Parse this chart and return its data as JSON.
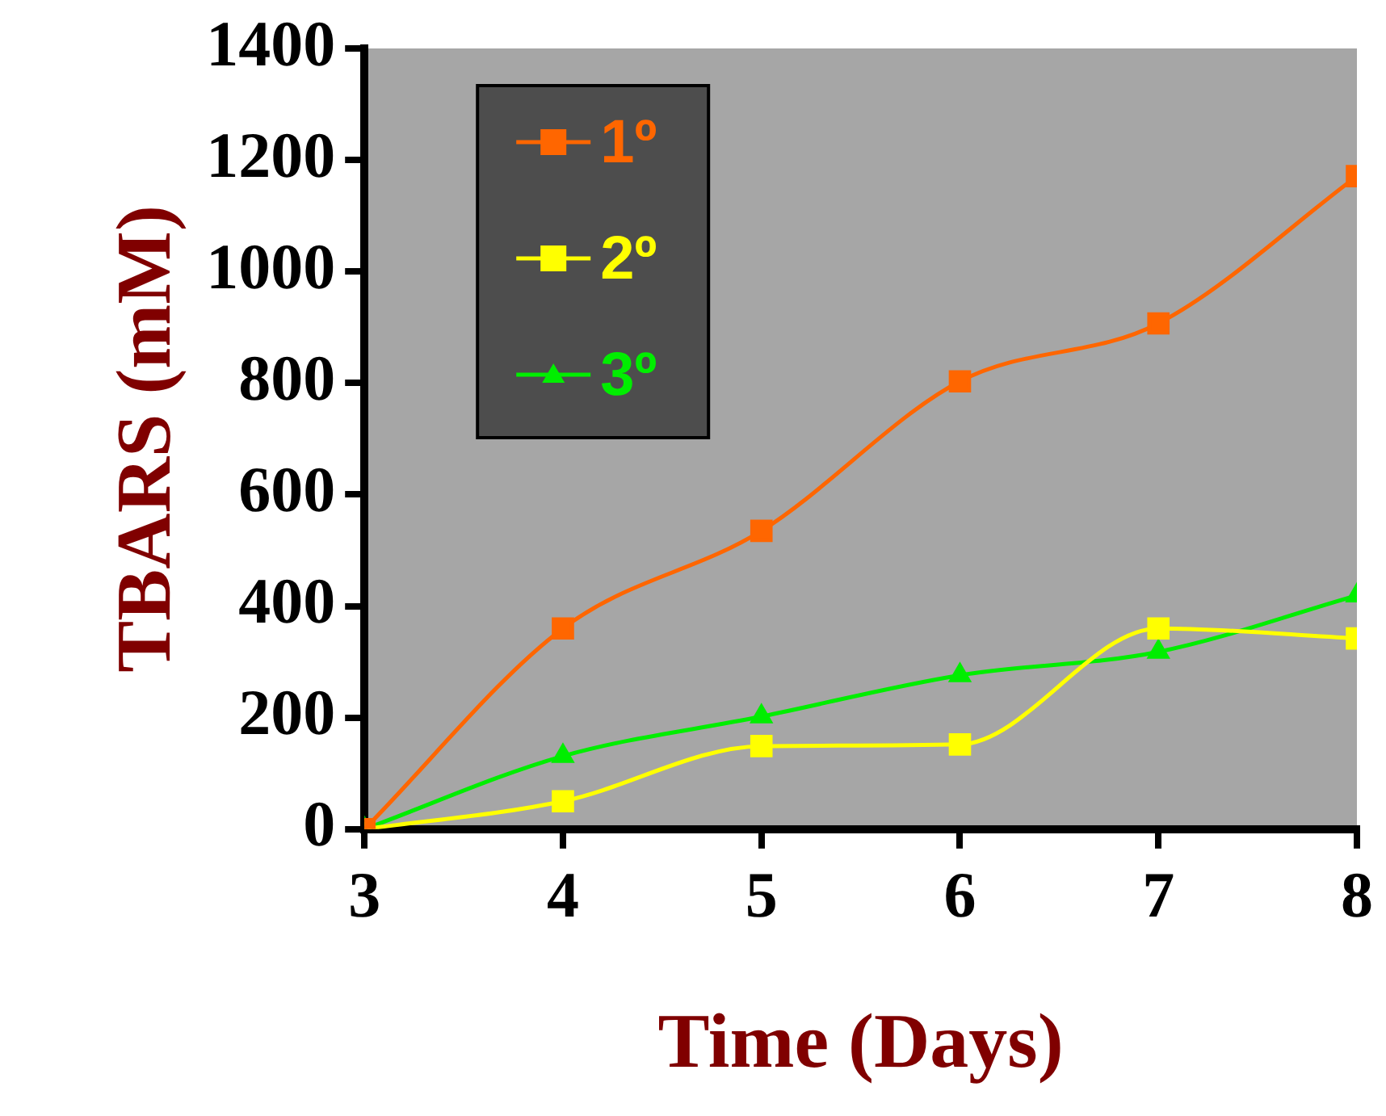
{
  "chart_data": {
    "type": "line",
    "xlabel": "Time (Days)",
    "ylabel": "TBARS (mM)",
    "x": [
      3,
      4,
      5,
      6,
      7,
      8
    ],
    "series": [
      {
        "name": "1º",
        "color": "#ff6600",
        "marker": "square",
        "values": [
          0,
          360,
          535,
          803,
          907,
          1171
        ]
      },
      {
        "name": "2º",
        "color": "#ffff00",
        "marker": "square",
        "values": [
          0,
          50,
          149,
          152,
          360,
          342
        ]
      },
      {
        "name": "3º",
        "color": "#00ee00",
        "marker": "triangle",
        "values": [
          0,
          131,
          202,
          276,
          318,
          419
        ]
      }
    ],
    "xlim": [
      3,
      8
    ],
    "xticks": [
      3,
      4,
      5,
      6,
      7,
      8
    ],
    "ylim": [
      0,
      1400
    ],
    "yticks": [
      0,
      200,
      400,
      600,
      800,
      1000,
      1200,
      1400
    ],
    "grid": false,
    "legend": "top left",
    "line_style": "solid"
  }
}
